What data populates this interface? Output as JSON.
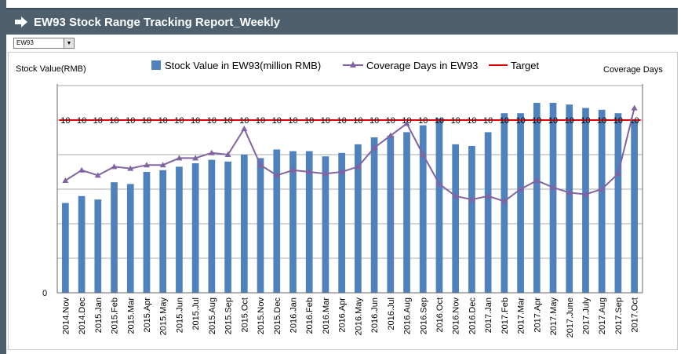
{
  "header": {
    "title": "EW93 Stock Range Tracking Report_Weekly",
    "arrow_icon": "arrow-right-icon",
    "bg_color": "#4e5f6d"
  },
  "selector": {
    "value": "EW93"
  },
  "chart_data": {
    "type": "bar",
    "ylabel_left": "Stock Value(RMB)",
    "ylabel_right": "Coverage Days",
    "left_axis_visible_tick": "0",
    "categories": [
      "2014.Nov",
      "2014.Dec",
      "2015.Jan",
      "2015.Feb",
      "2015.Mar",
      "2015.Apr",
      "2015.May",
      "2015.Jun",
      "2015.Jul",
      "2015.Aug",
      "2015.Sep",
      "2015.Oct",
      "2015.Nov",
      "2015.Dec",
      "2016.Jan",
      "2016.Feb",
      "2016.Mar",
      "2016.Apr",
      "2016.May",
      "2016.Jun",
      "2016.Jul",
      "2016.Aug",
      "2016.Sep",
      "2016.Oct",
      "2016.Nov",
      "2016.Dec",
      "2017.Jan",
      "2017.Feb",
      "2017.Mar",
      "2017.Apr",
      "2017.May",
      "2017.June",
      "2017.July",
      "2017.Aug",
      "2017.Sep",
      "2017.Oct"
    ],
    "series": [
      {
        "name": "Stock Value in EW93(million  RMB)",
        "kind": "bar",
        "color": "#4f81bd",
        "values": [
          5.2,
          5.6,
          5.4,
          6.4,
          6.3,
          7.0,
          7.1,
          7.3,
          7.5,
          7.7,
          7.6,
          8.0,
          7.8,
          8.3,
          8.2,
          8.2,
          7.9,
          8.1,
          8.6,
          9.0,
          9.1,
          9.3,
          9.7,
          10.1,
          8.6,
          8.5,
          9.3,
          10.4,
          10.4,
          11.0,
          11.0,
          10.9,
          10.7,
          10.6,
          10.4,
          10.0
        ]
      },
      {
        "name": "Coverage Days in EW93",
        "kind": "line",
        "color": "#8064a2",
        "values": [
          6.5,
          7.1,
          6.8,
          7.3,
          7.2,
          7.4,
          7.4,
          7.8,
          7.8,
          8.1,
          8.0,
          9.5,
          7.4,
          6.8,
          7.1,
          7.0,
          6.9,
          7.0,
          7.3,
          8.4,
          9.1,
          9.8,
          8.0,
          6.3,
          5.6,
          5.4,
          5.6,
          5.3,
          6.0,
          6.5,
          6.1,
          5.8,
          5.7,
          6.0,
          6.9,
          10.7
        ]
      },
      {
        "name": "Target",
        "kind": "line",
        "color": "#e00000",
        "values": [
          10,
          10,
          10,
          10,
          10,
          10,
          10,
          10,
          10,
          10,
          10,
          10,
          10,
          10,
          10,
          10,
          10,
          10,
          10,
          10,
          10,
          10,
          10,
          10,
          10,
          10,
          10,
          10,
          10,
          10,
          10,
          10,
          10,
          10,
          10,
          10
        ],
        "data_labels": [
          "10",
          "10",
          "10",
          "10",
          "10",
          "10",
          "10",
          "10",
          "10",
          "10",
          "10",
          "10",
          "10",
          "10",
          "10",
          "10",
          "10",
          "10",
          "10",
          "10",
          "10",
          "10",
          "10",
          "10",
          "10",
          "10",
          "10",
          "10",
          "10",
          "10",
          "10",
          "10",
          "10",
          "10",
          "10",
          "10"
        ]
      }
    ],
    "ylim": [
      0,
      12
    ],
    "legend_position": "top"
  }
}
